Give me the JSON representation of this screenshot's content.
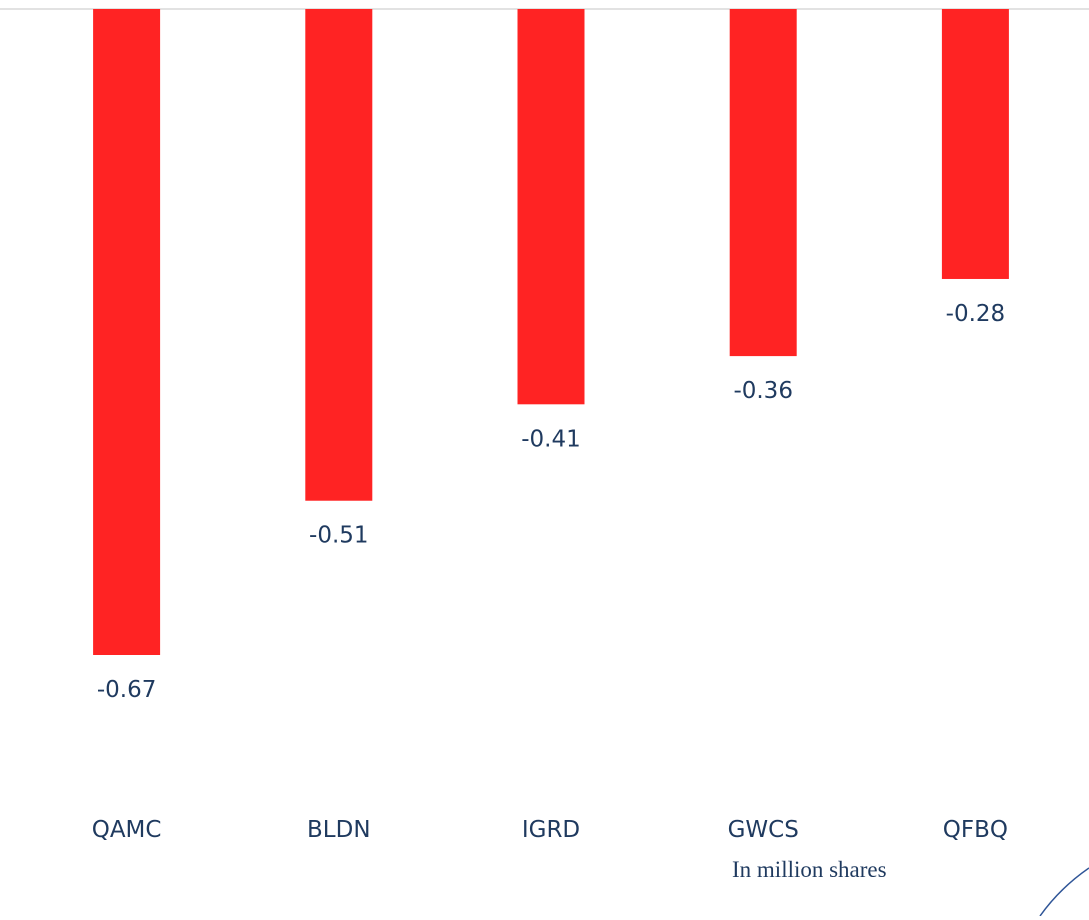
{
  "chart_data": {
    "type": "bar",
    "categories": [
      "QAMC",
      "BLDN",
      "IGRD",
      "GWCS",
      "QFBQ"
    ],
    "values": [
      -0.67,
      -0.51,
      -0.41,
      -0.36,
      -0.28
    ],
    "data_labels": [
      "-0.67",
      "-0.51",
      "-0.41",
      "-0.36",
      "-0.28"
    ],
    "title": "",
    "xlabel": "",
    "ylabel": "",
    "ylim": [
      -0.67,
      0
    ],
    "grid": false,
    "legend": "none",
    "colors": {
      "bar": "#ff2323",
      "text": "#1f3a5f",
      "baseline": "#d9d9d9",
      "decoration": "#2f5597"
    }
  },
  "note": "In million shares"
}
